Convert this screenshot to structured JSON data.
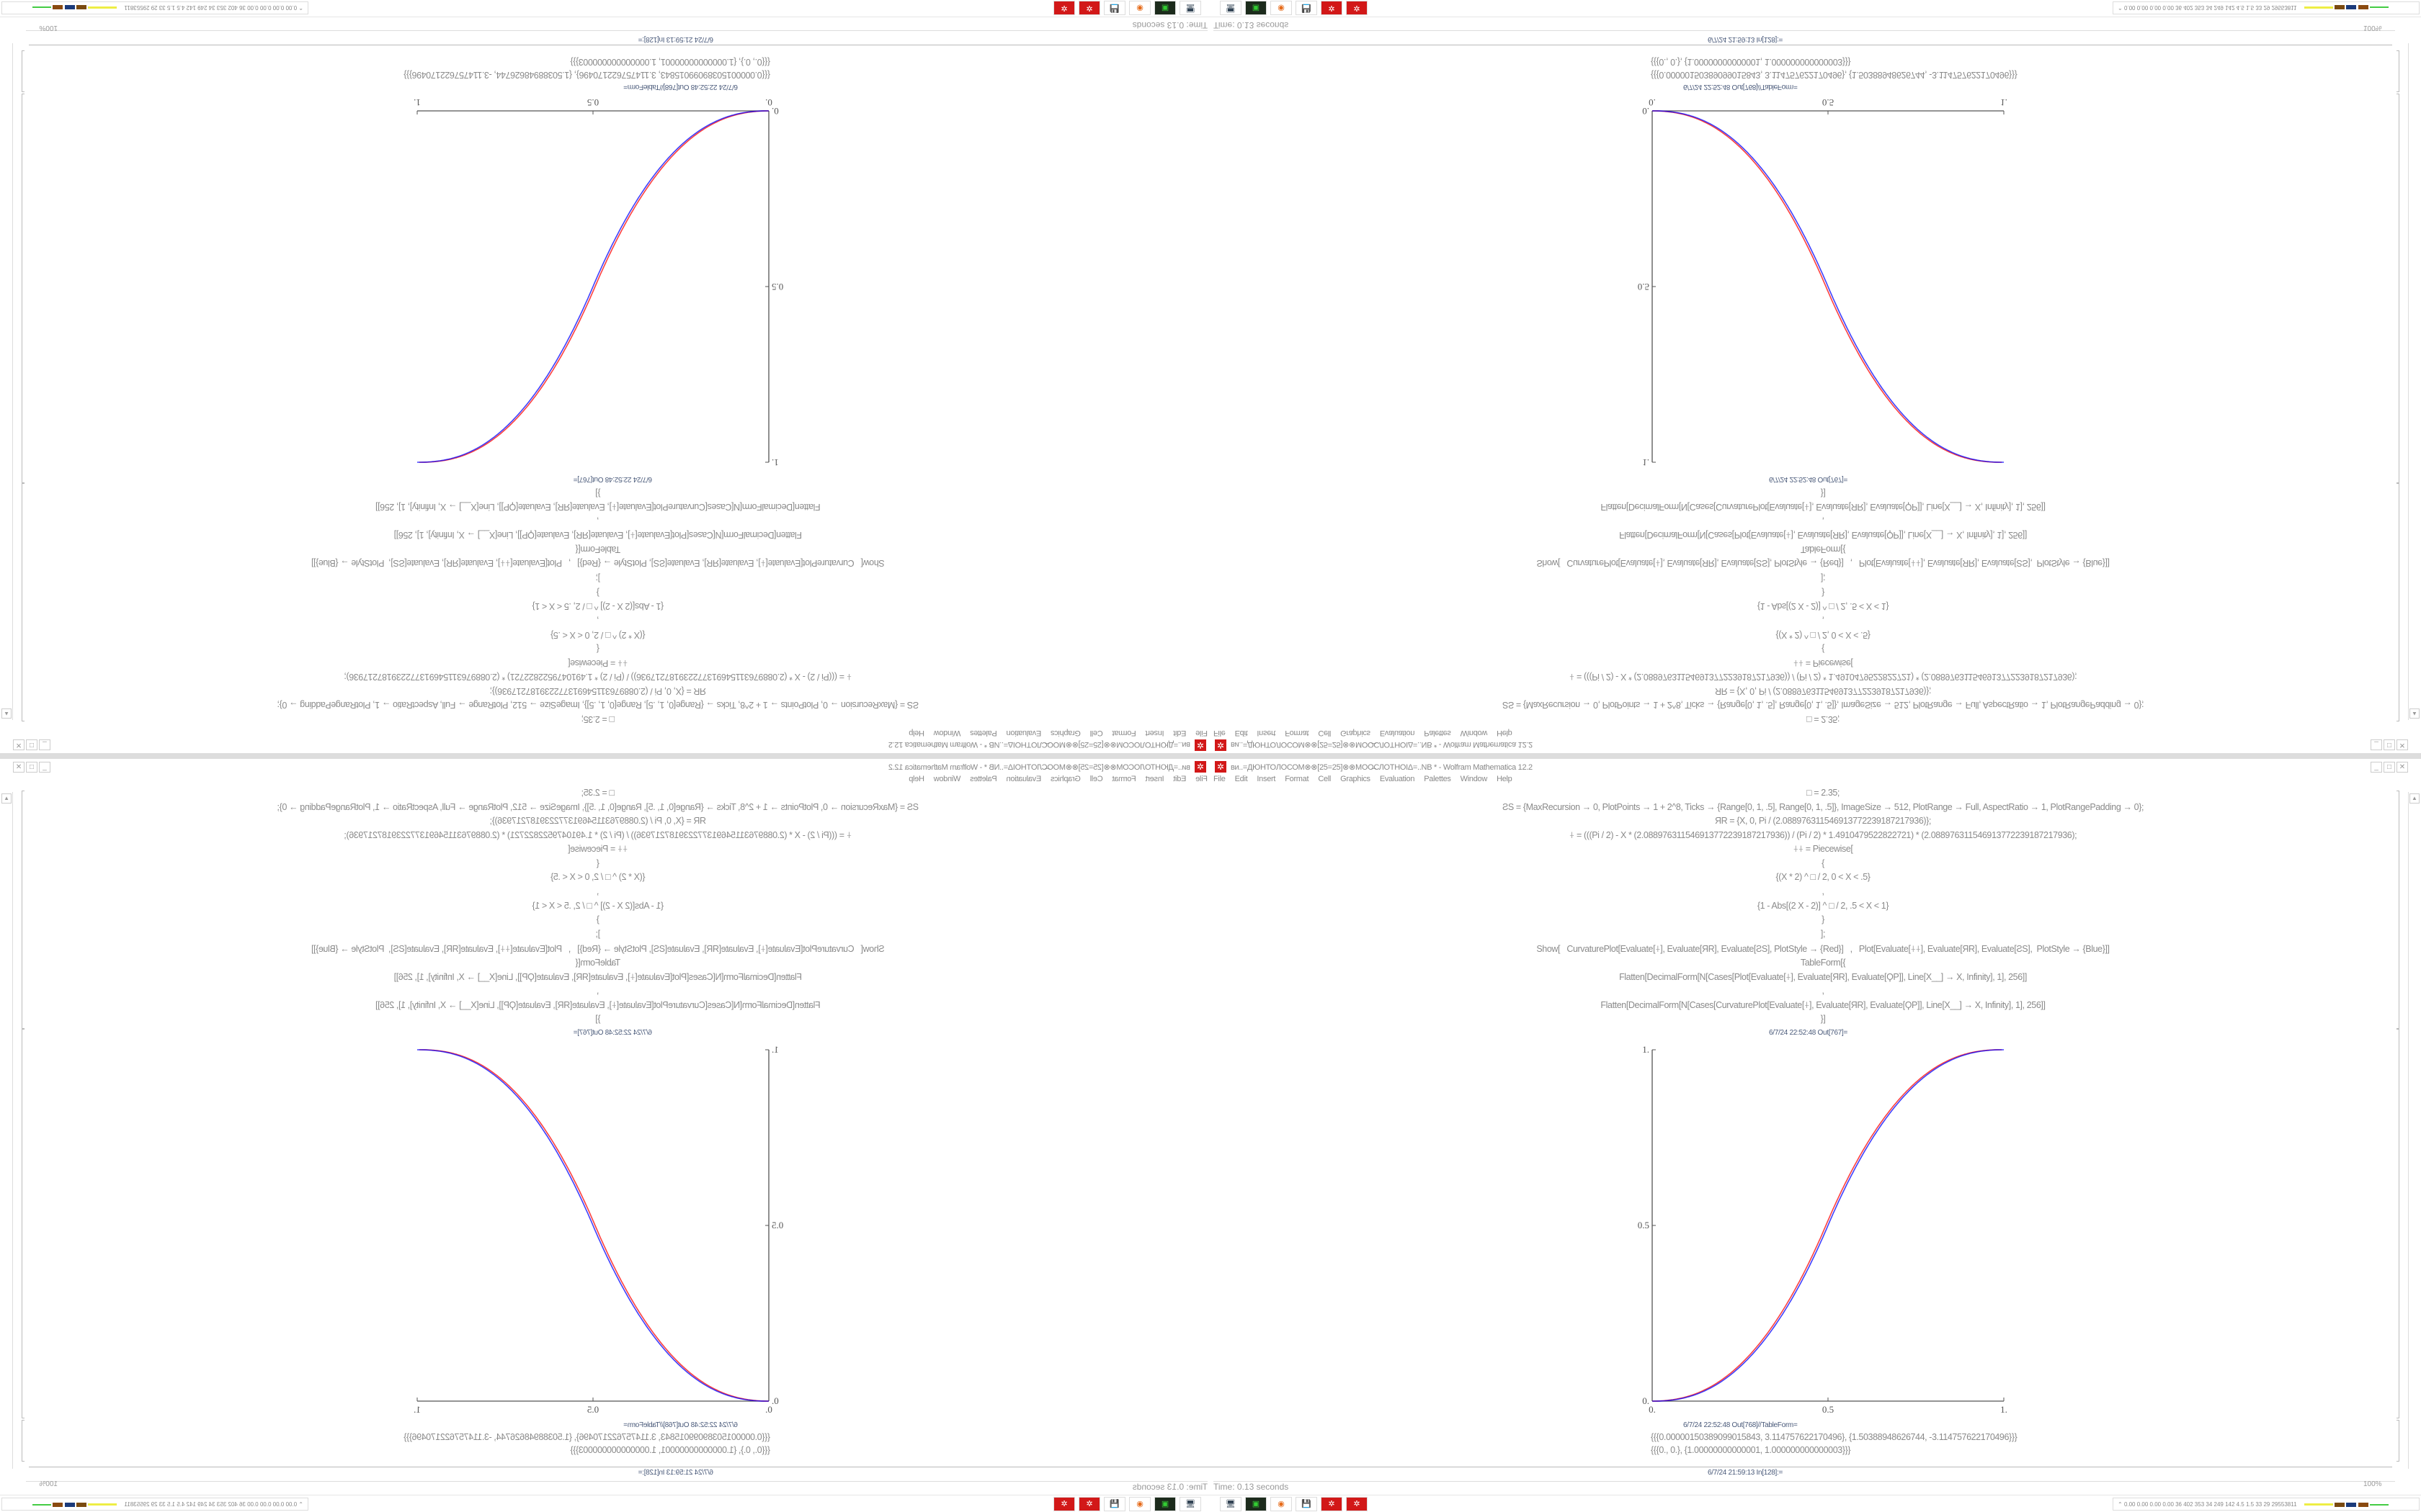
{
  "window": {
    "title": "ви..=ДЮНТОЛОСОМ⊗⊗[25=25]⊗⊗МОО̶СЛОТНОΙΔ=..NB * - Wolfram Mathematica 12.2",
    "controls": [
      "minimize",
      "maximize",
      "close"
    ]
  },
  "menu": [
    "File",
    "Edit",
    "Insert",
    "Format",
    "Cell",
    "Graphics",
    "Evaluation",
    "Palettes",
    "Window",
    "Help"
  ],
  "code": [
    "□ = 2.35;",
    "ƧS = {MaxRecursion → 0, PlotPoints → 1 + 2^8, Ticks → {Range[0, 1, .5], Range[0, 1, .5]}, ImageSize → 512, PlotRange → Full, AspectRatio → 1, PlotRangePadding → 0};",
    "ЯR = {X, 0, Pi / (2.0889763115469137722391872179​36)};",
    "⍭ = (((Pi / 2) - X * (2.08897631154691377223918721793​6)) / (Pi / 2) * 1.4910479522822721) * (2.08897631154691377223918721793​6);",
    "⍭⍭ = Piecewise[",
    "{",
    "{(X * 2) ^ □ / 2, 0 < X < .5}",
    ",",
    "{1 - Abs[(2 X - 2)] ^ □ / 2, .5 < X < 1}",
    "}",
    "];",
    "Show[   CurvaturePlot[Evaluate[⍭], Evaluate[ЯR], Evaluate[ƧS], PlotStyle → {Red}]   ,   Plot[Evaluate[⍭⍭], Evaluate[ЯR], Evaluate[ƧS],  PlotStyle → {Blue}]]",
    "TableForm[{",
    "Flatten[DecimalForm[N[Cases[Plot[Evaluate[⍭], Evaluate[ЯR], Evaluate[ϘP]], Line[X__] → X, Infinity], 1], 256]]",
    ",",
    "Flatten[DecimalForm[N[Cases[CurvaturePlot[Evaluate[⍭], Evaluate[ЯR], Evaluate[ϘP]], Line[X__] → X, Infinity], 1], 256]]",
    "}]"
  ],
  "out_plot_label": "6/7/24 22:52:48 Out[767]=",
  "out_table_label": "6/7/24 22:52:48 Out[768]//TableForm=",
  "results": [
    "{{{0.0000015038909901584​3, 3.114757622170496}, {1.50388948626744, -3.114757622170496}}}",
    "{{{0., 0.}, {1.00000000000001, 1.000000000000003}}}"
  ],
  "in_label": "6/7/24 21:59:13 In[128]:=",
  "status": {
    "time": "Time: 0.13 seconds",
    "zoom": "100%"
  },
  "taskbar": {
    "apps": [
      "remote-desktop-icon",
      "terminal-icon",
      "firefox-icon",
      "floppy-64-icon",
      "mathematica-icon",
      "mathematica-icon"
    ],
    "stats": "0.00 0.00 0.00 0.00  36   402  353   34   249  142  4.5  1.5   33   29  29553811"
  },
  "chart_data": {
    "type": "line",
    "xlim": [
      0,
      1
    ],
    "ylim": [
      0,
      1
    ],
    "x_ticks": [
      "0.",
      "0.5",
      "1."
    ],
    "y_ticks": [
      "0.",
      "0.5",
      "1."
    ],
    "grid": false,
    "x": [
      0,
      0.1,
      0.2,
      0.3,
      0.4,
      0.5,
      0.6,
      0.7,
      0.8,
      0.9,
      1.0
    ],
    "series": [
      {
        "color": "#ff0000",
        "values": [
          0,
          0.013,
          0.062,
          0.156,
          0.303,
          0.5,
          0.697,
          0.844,
          0.938,
          0.987,
          1
        ]
      },
      {
        "color": "#0000ff",
        "values": [
          0,
          0.011,
          0.058,
          0.15,
          0.296,
          0.5,
          0.704,
          0.85,
          0.942,
          0.989,
          1
        ]
      }
    ]
  }
}
